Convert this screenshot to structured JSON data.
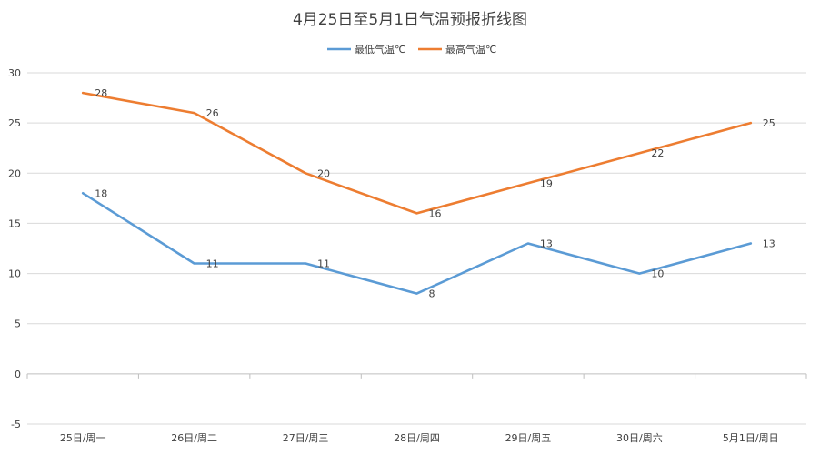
{
  "chart_data": {
    "type": "line",
    "title": "4月25日至5月1日气温预报折线图",
    "categories": [
      "25日/周一",
      "26日/周二",
      "27日/周三",
      "28日/周四",
      "29日/周五",
      "30日/周六",
      "5月1日/周日"
    ],
    "series": [
      {
        "name": "最低气温℃",
        "values": [
          18,
          11,
          11,
          8,
          13,
          10,
          13
        ],
        "color": "#5b9bd5"
      },
      {
        "name": "最高气温℃",
        "values": [
          28,
          26,
          20,
          16,
          19,
          22,
          25
        ],
        "color": "#ed7d31"
      }
    ],
    "yticks": [
      -5,
      0,
      5,
      10,
      15,
      20,
      25,
      30
    ],
    "ylim": [
      -5,
      30
    ],
    "grid": true,
    "legend": "top-center",
    "xlabel": "",
    "ylabel": ""
  }
}
